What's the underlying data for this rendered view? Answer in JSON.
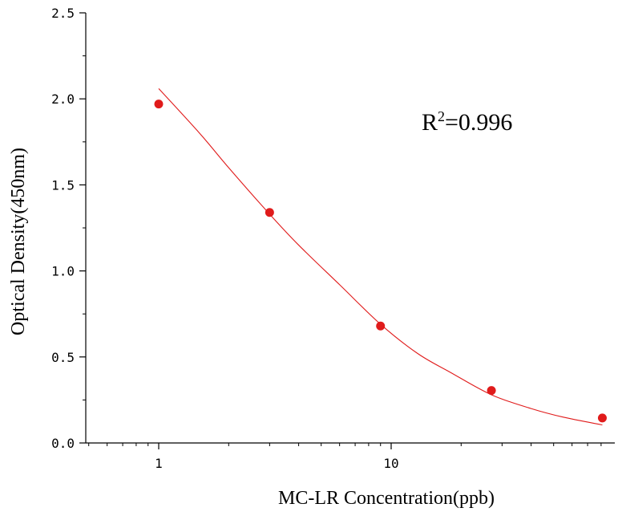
{
  "chart_data": {
    "type": "scatter",
    "xlabel": "MC-LR Concentration(ppb)",
    "ylabel": "Optical Density(450nm)",
    "x_scale": "log",
    "xlim": [
      0.5,
      80
    ],
    "ylim": [
      0,
      2.5
    ],
    "x_ticks": [
      1,
      10
    ],
    "x_tick_labels": [
      "1",
      "10"
    ],
    "y_ticks": [
      0,
      0.5,
      1.0,
      1.5,
      2.0,
      2.5
    ],
    "y_tick_labels": [
      "0.0",
      "0.5",
      "1.0",
      "1.5",
      "2.0",
      "2.5"
    ],
    "grid": false,
    "annotation": {
      "base": "R",
      "superscript": "2",
      "value": "=0.996"
    },
    "series": [
      {
        "type": "scatter",
        "x": [
          1,
          3,
          9,
          27,
          81
        ],
        "y": [
          1.97,
          1.34,
          0.68,
          0.305,
          0.145
        ]
      },
      {
        "type": "line",
        "x": [
          1,
          1.5,
          2,
          3,
          4,
          6,
          9,
          13,
          18,
          27,
          40,
          55,
          81
        ],
        "y": [
          2.06,
          1.8,
          1.6,
          1.33,
          1.15,
          0.92,
          0.69,
          0.52,
          0.41,
          0.28,
          0.2,
          0.15,
          0.105
        ]
      }
    ],
    "colors": {
      "points": "#e01b1b",
      "curve": "#e01b1b",
      "axis": "#000000"
    }
  }
}
